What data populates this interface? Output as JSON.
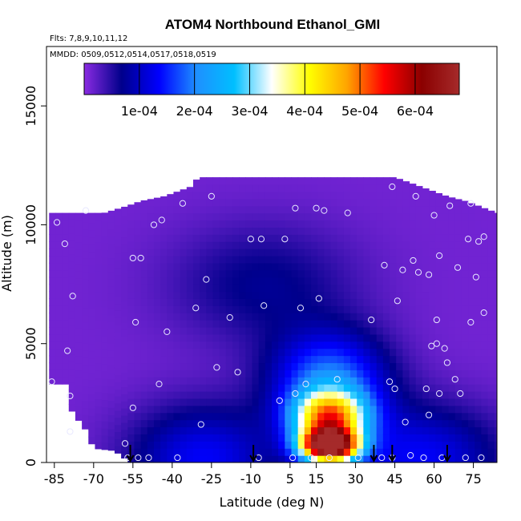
{
  "chart_data": {
    "type": "heatmap",
    "title": "ATOM4 Northbound Ethanol_GMI",
    "subtitle_lines": [
      "Flts: 7,8,9,10,11,12",
      "MMDD: 0509,0512,0514,0517,0518,0519"
    ],
    "xlabel": "Latitude (deg N)",
    "ylabel": "Altitude (m)",
    "xlim": [
      -88,
      84
    ],
    "ylim": [
      0,
      17500
    ],
    "x_ticks": [
      -85,
      -70,
      -55,
      -40,
      -25,
      -10,
      5,
      15,
      30,
      45,
      60,
      75
    ],
    "y_ticks": [
      0,
      5000,
      10000,
      15000
    ],
    "colorbar": {
      "range": [
        0,
        0.00068
      ],
      "ticks": [
        0.0001,
        0.0002,
        0.0003,
        0.0004,
        0.0005,
        0.0006
      ],
      "tick_labels": [
        "1e-04",
        "2e-04",
        "3e-04",
        "4e-04",
        "5e-04",
        "6e-04"
      ],
      "colors": [
        "#8a2be2",
        "#00008b",
        "#0000ff",
        "#1e90ff",
        "#00bfff",
        "#ffffff",
        "#ffff00",
        "#ffa500",
        "#ff0000",
        "#8b0000",
        "#a52a2a"
      ]
    },
    "field_top_altitude": [
      [
        -87,
        10500
      ],
      [
        -66,
        10500
      ],
      [
        -57,
        10800
      ],
      [
        -52,
        11000
      ],
      [
        -43,
        11200
      ],
      [
        -33,
        11600
      ],
      [
        -30,
        12000
      ],
      [
        45,
        12000
      ],
      [
        65,
        11200
      ],
      [
        72,
        11000
      ],
      [
        84,
        10500
      ]
    ],
    "field_bottom_altitude": [
      [
        -87,
        3300
      ],
      [
        -80,
        3300
      ],
      [
        -78,
        2000
      ],
      [
        -74,
        1600
      ],
      [
        -70,
        600
      ],
      [
        -62,
        500
      ],
      [
        -56,
        0
      ],
      [
        84,
        0
      ]
    ],
    "concentration_features": [
      {
        "lat": 20,
        "alt": 700,
        "value": 0.00065,
        "lat_halfwidth": 11,
        "alt_scale": 700
      },
      {
        "lat": 20,
        "alt": 1900,
        "value": 0.0004,
        "lat_halfwidth": 14,
        "alt_scale": 1100
      },
      {
        "lat": 20,
        "alt": 3500,
        "value": 0.00018,
        "lat_halfwidth": 22,
        "alt_scale": 2000
      },
      {
        "lat": -28,
        "alt": 200,
        "value": 0.00012,
        "lat_halfwidth": 28,
        "alt_scale": 2200
      },
      {
        "lat": 55,
        "alt": 200,
        "value": 0.00012,
        "lat_halfwidth": 30,
        "alt_scale": 2200
      },
      {
        "lat": -5,
        "alt": 7500,
        "value": 6e-05,
        "lat_halfwidth": 35,
        "alt_scale": 2500
      }
    ],
    "samples": [
      [
        -86,
        3400
      ],
      [
        -84,
        10100
      ],
      [
        -81,
        9200
      ],
      [
        -80,
        4700
      ],
      [
        -79,
        2800
      ],
      [
        -79,
        1300
      ],
      [
        -78,
        7000
      ],
      [
        -73,
        10600
      ],
      [
        -58,
        800
      ],
      [
        -57,
        200
      ],
      [
        -55,
        8600
      ],
      [
        -52,
        8600
      ],
      [
        -54,
        5900
      ],
      [
        -55,
        2300
      ],
      [
        -53,
        200
      ],
      [
        -49,
        200
      ],
      [
        -47,
        10000
      ],
      [
        -45,
        3300
      ],
      [
        -44,
        10200
      ],
      [
        -42,
        5500
      ],
      [
        -38,
        200
      ],
      [
        -36,
        10900
      ],
      [
        -31,
        6500
      ],
      [
        -29,
        1600
      ],
      [
        -27,
        7700
      ],
      [
        -25,
        11200
      ],
      [
        -23,
        4000
      ],
      [
        -18,
        6100
      ],
      [
        -15,
        3800
      ],
      [
        -10,
        9400
      ],
      [
        -7,
        200
      ],
      [
        -5,
        6600
      ],
      [
        -6,
        9400
      ],
      [
        1,
        2600
      ],
      [
        3,
        9400
      ],
      [
        6,
        200
      ],
      [
        7,
        2900
      ],
      [
        7,
        10700
      ],
      [
        9,
        6500
      ],
      [
        11,
        3300
      ],
      [
        13,
        200
      ],
      [
        15,
        10700
      ],
      [
        16,
        6900
      ],
      [
        18,
        10600
      ],
      [
        20,
        200
      ],
      [
        23,
        3500
      ],
      [
        27,
        10500
      ],
      [
        31,
        200
      ],
      [
        36,
        6000
      ],
      [
        40,
        200
      ],
      [
        41,
        8300
      ],
      [
        43,
        3400
      ],
      [
        44,
        200
      ],
      [
        44,
        11600
      ],
      [
        45,
        3100
      ],
      [
        46,
        6800
      ],
      [
        48,
        8100
      ],
      [
        49,
        1700
      ],
      [
        51,
        300
      ],
      [
        52,
        8500
      ],
      [
        53,
        11200
      ],
      [
        54,
        8000
      ],
      [
        56,
        200
      ],
      [
        57,
        3100
      ],
      [
        58,
        7900
      ],
      [
        58,
        2000
      ],
      [
        59,
        4900
      ],
      [
        60,
        10400
      ],
      [
        61,
        5000
      ],
      [
        61,
        6000
      ],
      [
        62,
        2900
      ],
      [
        62,
        8700
      ],
      [
        63,
        200
      ],
      [
        64,
        4800
      ],
      [
        65,
        4200
      ],
      [
        66,
        10800
      ],
      [
        68,
        3500
      ],
      [
        69,
        8200
      ],
      [
        70,
        2900
      ],
      [
        72,
        200
      ],
      [
        73,
        9400
      ],
      [
        74,
        10900
      ],
      [
        74,
        5900
      ],
      [
        76,
        7800
      ],
      [
        77,
        9300
      ],
      [
        78,
        200
      ],
      [
        79,
        9500
      ],
      [
        79,
        6300
      ]
    ],
    "flight_markers_lat": [
      -56,
      -9,
      37,
      44,
      65
    ]
  }
}
